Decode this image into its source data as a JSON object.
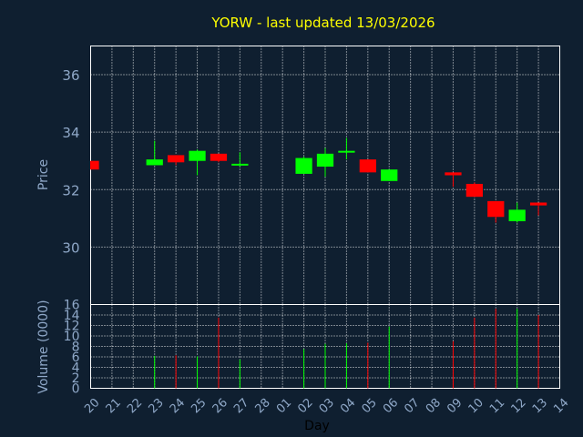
{
  "chart_data": {
    "title": "YORW - last updated 13/03/2026",
    "type": "candlestick",
    "xlabel": "Day",
    "x_ticks": [
      "20",
      "21",
      "22",
      "23",
      "24",
      "25",
      "26",
      "27",
      "28",
      "01",
      "02",
      "03",
      "04",
      "05",
      "06",
      "07",
      "08",
      "09",
      "10",
      "11",
      "12",
      "13",
      "14"
    ],
    "price_panel": {
      "ylabel": "Price",
      "ylim": [
        28,
        37
      ],
      "yticks": [
        30,
        32,
        34,
        36
      ],
      "grid": true
    },
    "volume_panel": {
      "ylabel": "Volume (0000)",
      "ylim": [
        0,
        16
      ],
      "yticks": [
        0,
        2,
        4,
        6,
        8,
        10,
        12,
        14,
        16
      ],
      "grid": true
    },
    "candles": [
      {
        "day": "20",
        "open": 33.0,
        "high": 33.0,
        "low": 32.7,
        "close": 32.7,
        "volume": 0
      },
      {
        "day": "23",
        "open": 32.85,
        "high": 33.7,
        "low": 32.85,
        "close": 33.05,
        "volume": 6.2
      },
      {
        "day": "24",
        "open": 33.2,
        "high": 33.2,
        "low": 32.85,
        "close": 32.95,
        "volume": 6.3
      },
      {
        "day": "25",
        "open": 33.0,
        "high": 33.4,
        "low": 32.5,
        "close": 33.35,
        "volume": 6.1
      },
      {
        "day": "26",
        "open": 33.25,
        "high": 33.25,
        "low": 32.95,
        "close": 33.0,
        "volume": 13.5
      },
      {
        "day": "27",
        "open": 32.85,
        "high": 33.3,
        "low": 32.8,
        "close": 32.9,
        "volume": 5.5
      },
      {
        "day": "02",
        "open": 32.55,
        "high": 33.15,
        "low": 32.55,
        "close": 33.1,
        "volume": 7.5
      },
      {
        "day": "03",
        "open": 32.8,
        "high": 33.45,
        "low": 32.45,
        "close": 33.25,
        "volume": 8.5
      },
      {
        "day": "04",
        "open": 33.35,
        "high": 33.8,
        "low": 33.05,
        "close": 33.35,
        "volume": 8.6
      },
      {
        "day": "05",
        "open": 33.05,
        "high": 33.05,
        "low": 32.6,
        "close": 32.6,
        "volume": 8.7
      },
      {
        "day": "06",
        "open": 32.3,
        "high": 32.7,
        "low": 32.3,
        "close": 32.7,
        "volume": 11.8
      },
      {
        "day": "09",
        "open": 32.6,
        "high": 32.6,
        "low": 32.1,
        "close": 32.5,
        "volume": 9.0
      },
      {
        "day": "10",
        "open": 32.2,
        "high": 32.25,
        "low": 31.75,
        "close": 31.75,
        "volume": 13.5
      },
      {
        "day": "11",
        "open": 31.6,
        "high": 31.6,
        "low": 30.85,
        "close": 31.05,
        "volume": 15.2
      },
      {
        "day": "12",
        "open": 30.9,
        "high": 31.55,
        "low": 30.85,
        "close": 31.3,
        "volume": 15.2
      },
      {
        "day": "13",
        "open": 31.55,
        "high": 31.55,
        "low": 31.1,
        "close": 31.45,
        "volume": 14.0
      }
    ],
    "colors": {
      "up": "#00ff00",
      "down": "#ff0000",
      "background": "#0f1f30",
      "title": "#ffff00",
      "axis_text": "#8fa8c8",
      "grid": "#ffffff"
    }
  }
}
